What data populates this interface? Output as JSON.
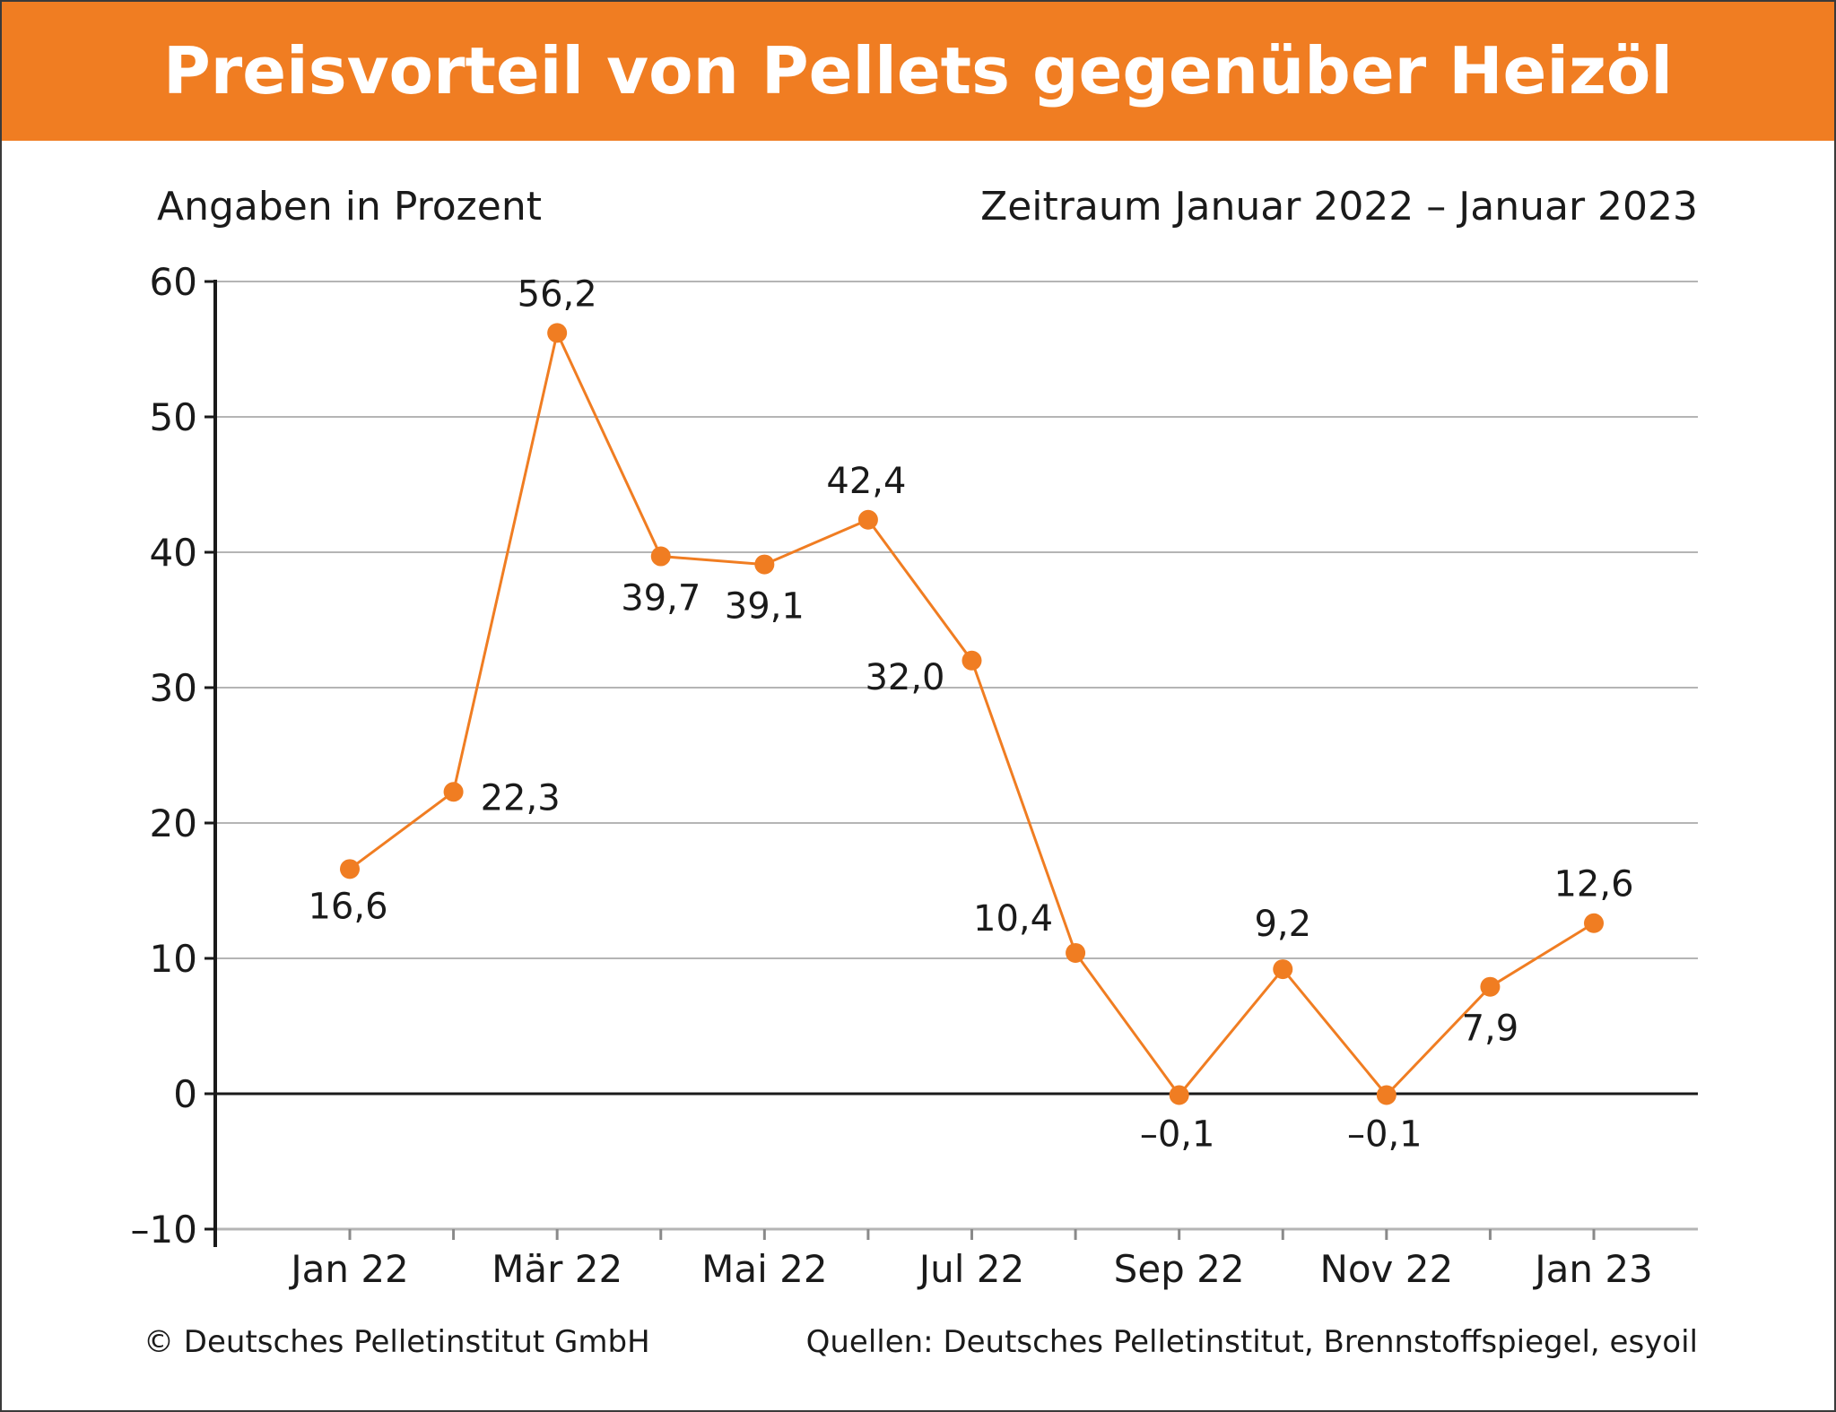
{
  "header": {
    "title": "Preisvorteil von Pellets gegenüber Heizöl"
  },
  "subtitles": {
    "left": "Angaben in Prozent",
    "right": "Zeitraum Januar 2022 – Januar 2023"
  },
  "footer": {
    "left": "© Deutsches Pelletinstitut GmbH",
    "right": "Quellen: Deutsches Pelletinstitut, Brennstoffspiegel, esyoil"
  },
  "colors": {
    "accent": "#f07d22",
    "grid": "#b5b5b5",
    "axis": "#1a1a1a"
  },
  "chart_data": {
    "type": "line",
    "title": "Preisvorteil von Pellets gegenüber Heizöl",
    "ylabel": "Angaben in Prozent",
    "ylim": [
      -10,
      60
    ],
    "yticks": [
      60,
      50,
      40,
      30,
      20,
      10,
      0,
      -10
    ],
    "ytick_labels": [
      "60",
      "50",
      "40",
      "30",
      "20",
      "10",
      "0",
      "–10"
    ],
    "x": [
      "Jan 22",
      "Feb 22",
      "Mär 22",
      "Apr 22",
      "Mai 22",
      "Jun 22",
      "Jul 22",
      "Aug 22",
      "Sep 22",
      "Okt 22",
      "Nov 22",
      "Dez 22",
      "Jan 23"
    ],
    "xtick_labels_shown": [
      "Jan 22",
      "",
      "Mär 22",
      "",
      "Mai 22",
      "",
      "Jul 22",
      "",
      "Sep 22",
      "",
      "Nov 22",
      "",
      "Jan 23"
    ],
    "series": [
      {
        "values": [
          16.6,
          22.3,
          56.2,
          39.7,
          39.1,
          42.4,
          32.0,
          10.4,
          -0.1,
          9.2,
          -0.1,
          7.9,
          12.6
        ],
        "value_labels": [
          "16,6",
          "22,3",
          "56,2",
          "39,7",
          "39,1",
          "42,4",
          "32,0",
          "10,4",
          "–0,1",
          "9,2",
          "–0,1",
          "7,9",
          "12,6"
        ]
      }
    ],
    "grid": true,
    "legend": "none"
  }
}
